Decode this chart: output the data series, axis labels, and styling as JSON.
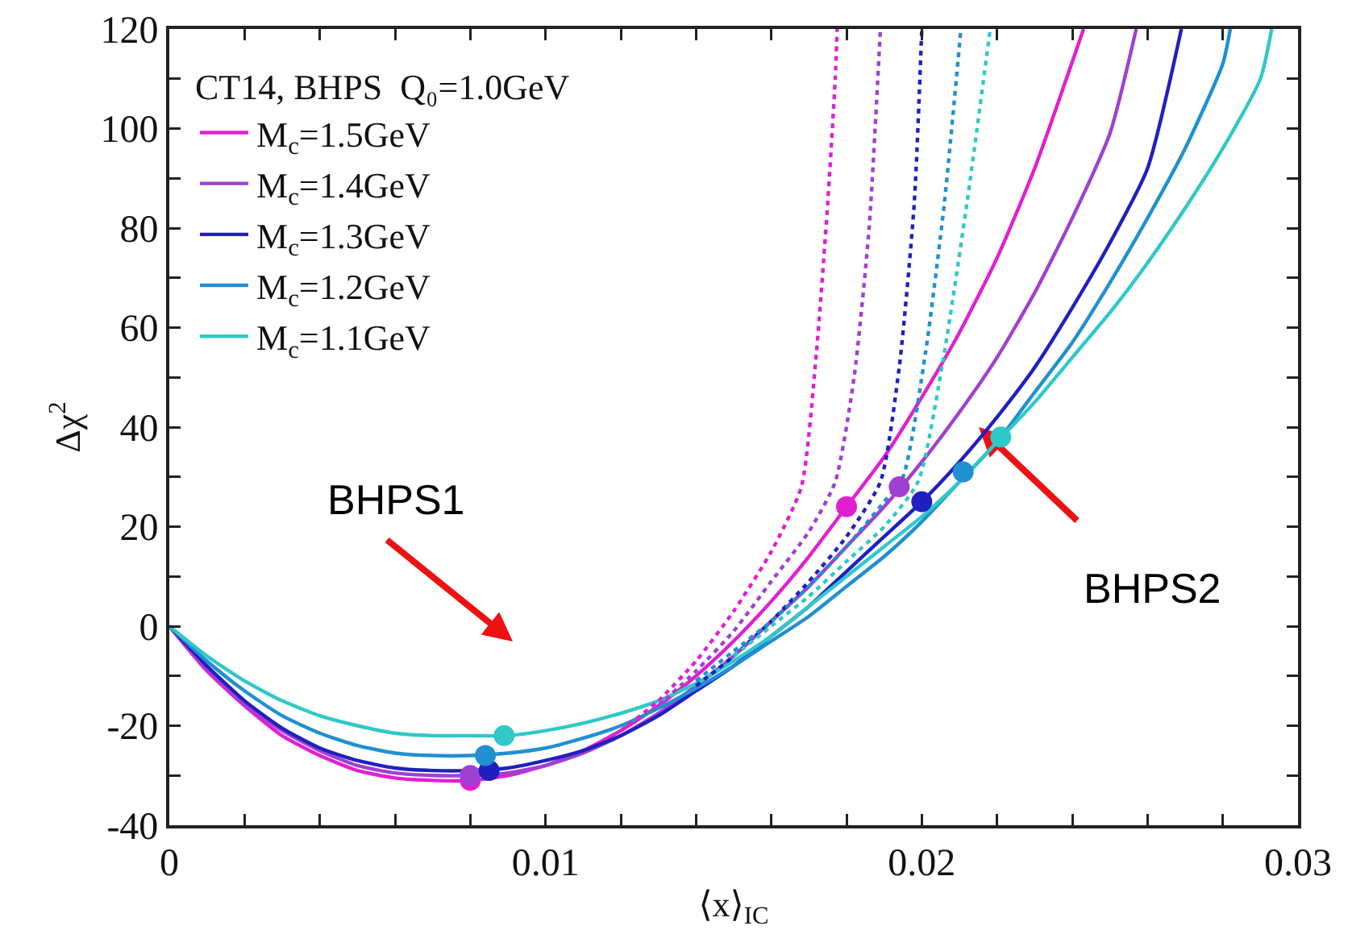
{
  "chart_data": {
    "type": "line",
    "xlabel": "⟨x⟩$_{IC}$",
    "ylabel": "Δχ$^{2}$",
    "legend_title": "CT14, BHPS  Q₀=1.0GeV",
    "xlim": [
      0,
      0.03
    ],
    "ylim": [
      -40,
      120
    ],
    "xticks": [
      0,
      {
        "value": 0.002,
        "label": null
      },
      {
        "value": 0.004,
        "label": null
      },
      {
        "value": 0.006,
        "label": null
      },
      {
        "value": 0.008,
        "label": null
      },
      0.01,
      {
        "value": 0.012,
        "label": null
      },
      {
        "value": 0.014,
        "label": null
      },
      {
        "value": 0.016,
        "label": null
      },
      {
        "value": 0.018,
        "label": null
      },
      0.02,
      {
        "value": 0.022,
        "label": null
      },
      {
        "value": 0.024,
        "label": null
      },
      {
        "value": 0.026,
        "label": null
      },
      {
        "value": 0.028,
        "label": null
      },
      0.03
    ],
    "yticks": [
      -40,
      {
        "value": -30,
        "label": null
      },
      -20,
      {
        "value": -10,
        "label": null
      },
      0,
      {
        "value": 10,
        "label": null
      },
      20,
      {
        "value": 30,
        "label": null
      },
      40,
      {
        "value": 50,
        "label": null
      },
      60,
      {
        "value": 70,
        "label": null
      },
      80,
      {
        "value": 90,
        "label": null
      },
      100,
      {
        "value": 110,
        "label": null
      },
      120
    ],
    "grid": false,
    "legend": "top left",
    "series": [
      {
        "name": "M$_{c}$=1.5GeV",
        "color": "#e020d0",
        "line_style": "solid",
        "marker": "none",
        "x": [
          0,
          0.001,
          0.002,
          0.003,
          0.004,
          0.005,
          0.006,
          0.007,
          0.008,
          0.009,
          0.01,
          0.011,
          0.012,
          0.013,
          0.014,
          0.015,
          0.016,
          0.017,
          0.018,
          0.019,
          0.02,
          0.021,
          0.022,
          0.023,
          0.0243
        ],
        "values": [
          0,
          -9,
          -16,
          -22,
          -26,
          -29,
          -30.5,
          -31,
          -31,
          -30,
          -28,
          -25,
          -21,
          -16,
          -10,
          -3,
          5,
          14,
          24,
          34,
          46,
          59,
          74,
          92,
          120
        ]
      },
      {
        "name": "M$_{c}$=1.4GeV",
        "color": "#a040d0",
        "line_style": "solid",
        "marker": "none",
        "x": [
          0,
          0.001,
          0.002,
          0.003,
          0.004,
          0.005,
          0.006,
          0.007,
          0.008,
          0.009,
          0.01,
          0.011,
          0.012,
          0.013,
          0.014,
          0.015,
          0.016,
          0.017,
          0.018,
          0.019,
          0.02,
          0.021,
          0.022,
          0.023,
          0.024,
          0.025,
          0.0257
        ],
        "values": [
          0,
          -8.5,
          -15.5,
          -21,
          -25,
          -28,
          -29.5,
          -30,
          -30,
          -29.5,
          -28,
          -25.5,
          -22,
          -17.5,
          -12,
          -6,
          1,
          8,
          16,
          24,
          33,
          43,
          54,
          67,
          82,
          99,
          120
        ]
      },
      {
        "name": "M$_{c}$=1.3GeV",
        "color": "#2020c0",
        "line_style": "solid",
        "marker": "none",
        "x": [
          0,
          0.001,
          0.002,
          0.003,
          0.004,
          0.005,
          0.006,
          0.007,
          0.008,
          0.009,
          0.01,
          0.011,
          0.012,
          0.013,
          0.014,
          0.015,
          0.016,
          0.017,
          0.018,
          0.019,
          0.02,
          0.021,
          0.022,
          0.023,
          0.024,
          0.025,
          0.026,
          0.0269
        ],
        "values": [
          0,
          -8,
          -15,
          -20.5,
          -24.5,
          -27,
          -28.5,
          -29,
          -29,
          -28.5,
          -27,
          -25,
          -22,
          -18,
          -13,
          -8,
          -2,
          4,
          11,
          18,
          25,
          33,
          42,
          52,
          64,
          77,
          92,
          120
        ]
      },
      {
        "name": "M$_{c}$=1.2GeV",
        "color": "#2090d0",
        "line_style": "solid",
        "marker": "none",
        "x": [
          0,
          0.001,
          0.002,
          0.003,
          0.004,
          0.005,
          0.006,
          0.007,
          0.008,
          0.009,
          0.01,
          0.011,
          0.012,
          0.013,
          0.014,
          0.015,
          0.016,
          0.017,
          0.018,
          0.019,
          0.02,
          0.021,
          0.022,
          0.023,
          0.024,
          0.025,
          0.026,
          0.027,
          0.028,
          0.0282
        ],
        "values": [
          0,
          -7,
          -13,
          -18,
          -21.5,
          -24,
          -25.5,
          -26,
          -26,
          -25.5,
          -24.5,
          -22.5,
          -20,
          -16.5,
          -12.5,
          -8,
          -3,
          2,
          8,
          14,
          21,
          29,
          37,
          47,
          57,
          69,
          82,
          96,
          113,
          120
        ]
      },
      {
        "name": "M$_{c}$=1.1GeV",
        "color": "#30c8c8",
        "line_style": "solid",
        "marker": "none",
        "x": [
          0,
          0.001,
          0.002,
          0.003,
          0.004,
          0.005,
          0.006,
          0.007,
          0.008,
          0.009,
          0.01,
          0.011,
          0.012,
          0.013,
          0.014,
          0.015,
          0.016,
          0.017,
          0.018,
          0.019,
          0.02,
          0.021,
          0.022,
          0.023,
          0.024,
          0.025,
          0.026,
          0.027,
          0.028,
          0.029,
          0.0293
        ],
        "values": [
          0,
          -6,
          -11,
          -15,
          -18,
          -20,
          -21.5,
          -22,
          -22,
          -22,
          -21,
          -19.5,
          -17.5,
          -15,
          -11.5,
          -7,
          -2,
          4,
          10,
          16,
          22,
          29,
          37,
          45,
          54,
          63,
          73,
          84,
          96,
          110,
          120
        ]
      },
      {
        "color": "#e020d0",
        "line_style": "dotted",
        "marker": "none",
        "x": [
          0.012,
          0.013,
          0.014,
          0.015,
          0.016,
          0.0168,
          0.0172,
          0.0175,
          0.0177,
          0.01775
        ],
        "values": [
          -21,
          -15,
          -7,
          3,
          15,
          28,
          55,
          85,
          110,
          120
        ]
      },
      {
        "color": "#a040d0",
        "line_style": "dotted",
        "marker": "none",
        "x": [
          0.013,
          0.014,
          0.015,
          0.016,
          0.017,
          0.0177,
          0.0182,
          0.0186,
          0.0189
        ],
        "values": [
          -16,
          -9,
          -1,
          9,
          19,
          29,
          50,
          80,
          120
        ]
      },
      {
        "color": "#2020c0",
        "line_style": "dotted",
        "marker": "none",
        "x": [
          0.014,
          0.015,
          0.016,
          0.017,
          0.018,
          0.0189,
          0.0194,
          0.0198,
          0.02
        ],
        "values": [
          -12,
          -6,
          1,
          9,
          18,
          29,
          52,
          85,
          120
        ]
      },
      {
        "color": "#2090d0",
        "line_style": "dotted",
        "marker": "none",
        "x": [
          0.014,
          0.015,
          0.016,
          0.017,
          0.018,
          0.019,
          0.0195,
          0.0201,
          0.0206,
          0.02104
        ],
        "values": [
          -11,
          -5,
          1,
          8,
          16,
          25,
          30,
          55,
          85,
          120
        ]
      },
      {
        "color": "#30c8c8",
        "line_style": "dotted",
        "marker": "none",
        "x": [
          0.015,
          0.016,
          0.017,
          0.018,
          0.019,
          0.0199,
          0.0206,
          0.0212,
          0.02182
        ],
        "values": [
          -6,
          0,
          6,
          13,
          20,
          29,
          55,
          85,
          120
        ]
      },
      {
        "type": "scatter",
        "color": "#e020d0",
        "marker": "circle",
        "x": [
          0.008,
          0.018
        ],
        "values": [
          -31,
          24
        ]
      },
      {
        "type": "scatter",
        "color": "#a040d0",
        "marker": "circle",
        "x": [
          0.008,
          0.0194
        ],
        "values": [
          -30,
          28
        ]
      },
      {
        "type": "scatter",
        "color": "#2020c0",
        "marker": "circle",
        "x": [
          0.0085,
          0.02
        ],
        "values": [
          -29,
          25
        ]
      },
      {
        "type": "scatter",
        "color": "#2090d0",
        "marker": "circle",
        "x": [
          0.0084,
          0.0211
        ],
        "values": [
          -26,
          31
        ]
      },
      {
        "type": "scatter",
        "color": "#30c8c8",
        "marker": "circle",
        "x": [
          0.0089,
          0.0221
        ],
        "values": [
          -22,
          38
        ]
      }
    ],
    "annotations": [
      "BHPS1",
      "BHPS2"
    ]
  }
}
